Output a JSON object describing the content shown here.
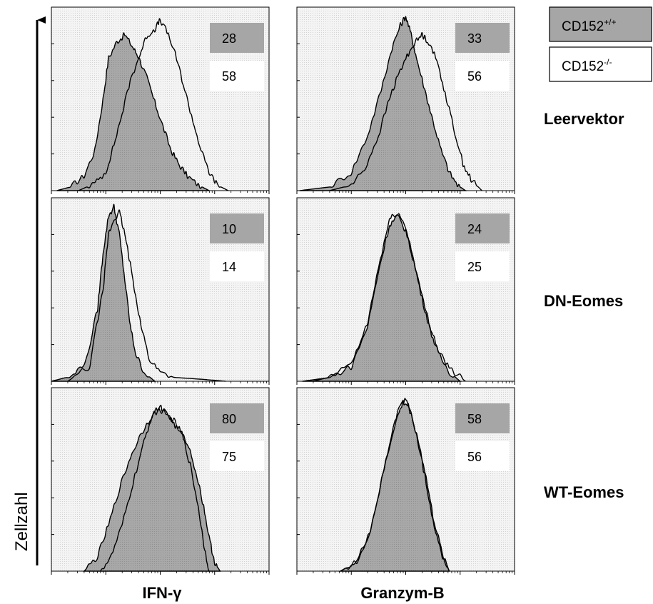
{
  "figure": {
    "y_axis_label": "Zellzahl",
    "column_labels": [
      "IFN-γ",
      "Granzym-B"
    ],
    "row_labels": [
      "Leervektor",
      "DN-Eomes",
      "WT-Eomes"
    ]
  },
  "legend": {
    "position": "top-right",
    "entries": [
      {
        "base": "CD152",
        "sup": "+/+",
        "fill": "#a6a6a6"
      },
      {
        "base": "CD152",
        "sup": "-/-",
        "fill": "#ffffff"
      }
    ]
  },
  "colors": {
    "filled_histogram": "#a6a6a6",
    "open_histogram_line": "#000000",
    "panel_background": "#f3f3f3",
    "gray_box": "#a6a6a6"
  },
  "chart_data": {
    "type": "area",
    "layout": "3x2 grid of overlaid flow-cytometry histograms",
    "x_scale": "log",
    "xlim_decades": [
      0,
      4
    ],
    "ylim": [
      0,
      100
    ],
    "grid": false,
    "panels": [
      {
        "row": "Leervektor",
        "marker": "IFN-γ",
        "values": {
          "CD152+/+": "28",
          "CD152-/-": "58"
        },
        "series": [
          {
            "legend": "CD152+/+",
            "style": "filled",
            "points": [
              [
                0.1,
                0
              ],
              [
                0.35,
                2
              ],
              [
                0.6,
                8
              ],
              [
                0.8,
                22
              ],
              [
                0.95,
                50
              ],
              [
                1.05,
                72
              ],
              [
                1.2,
                81
              ],
              [
                1.35,
                85
              ],
              [
                1.5,
                78
              ],
              [
                1.6,
                73
              ],
              [
                1.75,
                62
              ],
              [
                1.9,
                48
              ],
              [
                2.05,
                35
              ],
              [
                2.2,
                22
              ],
              [
                2.35,
                14
              ],
              [
                2.5,
                8
              ],
              [
                2.7,
                3
              ],
              [
                2.9,
                0
              ]
            ]
          },
          {
            "legend": "CD152-/-",
            "style": "outline",
            "points": [
              [
                0.5,
                0
              ],
              [
                0.8,
                4
              ],
              [
                1.0,
                10
              ],
              [
                1.15,
                25
              ],
              [
                1.3,
                42
              ],
              [
                1.45,
                60
              ],
              [
                1.6,
                72
              ],
              [
                1.75,
                84
              ],
              [
                1.9,
                88
              ],
              [
                2.0,
                93
              ],
              [
                2.15,
                85
              ],
              [
                2.3,
                72
              ],
              [
                2.45,
                55
              ],
              [
                2.6,
                38
              ],
              [
                2.75,
                22
              ],
              [
                2.9,
                10
              ],
              [
                3.05,
                3
              ],
              [
                3.25,
                0
              ]
            ]
          }
        ]
      },
      {
        "row": "Leervektor",
        "marker": "Granzym-B",
        "values": {
          "CD152+/+": "33",
          "CD152-/-": "56"
        },
        "series": [
          {
            "legend": "CD152+/+",
            "style": "filled",
            "points": [
              [
                0.05,
                0
              ],
              [
                0.6,
                2
              ],
              [
                1.0,
                10
              ],
              [
                1.3,
                30
              ],
              [
                1.55,
                55
              ],
              [
                1.75,
                78
              ],
              [
                1.9,
                90
              ],
              [
                2.0,
                95
              ],
              [
                2.1,
                85
              ],
              [
                2.2,
                72
              ],
              [
                2.35,
                55
              ],
              [
                2.5,
                38
              ],
              [
                2.65,
                22
              ],
              [
                2.8,
                10
              ],
              [
                2.95,
                3
              ],
              [
                3.1,
                0
              ]
            ]
          },
          {
            "legend": "CD152-/-",
            "style": "outline",
            "points": [
              [
                0.6,
                0
              ],
              [
                1.0,
                3
              ],
              [
                1.25,
                12
              ],
              [
                1.5,
                30
              ],
              [
                1.7,
                50
              ],
              [
                1.85,
                62
              ],
              [
                2.0,
                72
              ],
              [
                2.15,
                80
              ],
              [
                2.3,
                85
              ],
              [
                2.45,
                80
              ],
              [
                2.6,
                68
              ],
              [
                2.75,
                50
              ],
              [
                2.9,
                32
              ],
              [
                3.05,
                15
              ],
              [
                3.2,
                6
              ],
              [
                3.4,
                0
              ]
            ]
          }
        ]
      },
      {
        "row": "DN-Eomes",
        "marker": "IFN-γ",
        "values": {
          "CD152+/+": "10",
          "CD152-/-": "14"
        },
        "series": [
          {
            "legend": "CD152+/+",
            "style": "filled",
            "points": [
              [
                0.0,
                0
              ],
              [
                0.4,
                3
              ],
              [
                0.65,
                12
              ],
              [
                0.85,
                40
              ],
              [
                0.95,
                70
              ],
              [
                1.05,
                90
              ],
              [
                1.15,
                95
              ],
              [
                1.25,
                80
              ],
              [
                1.35,
                55
              ],
              [
                1.45,
                30
              ],
              [
                1.55,
                15
              ],
              [
                1.7,
                5
              ],
              [
                1.9,
                0
              ]
            ]
          },
          {
            "legend": "CD152-/-",
            "style": "outline",
            "points": [
              [
                0.3,
                0
              ],
              [
                0.7,
                8
              ],
              [
                0.95,
                50
              ],
              [
                1.05,
                80
              ],
              [
                1.15,
                88
              ],
              [
                1.25,
                92
              ],
              [
                1.35,
                80
              ],
              [
                1.5,
                55
              ],
              [
                1.65,
                30
              ],
              [
                1.8,
                12
              ],
              [
                2.0,
                5
              ],
              [
                2.3,
                2
              ],
              [
                2.8,
                1
              ],
              [
                3.2,
                0
              ]
            ]
          }
        ]
      },
      {
        "row": "DN-Eomes",
        "marker": "Granzym-B",
        "values": {
          "CD152+/+": "24",
          "CD152-/-": "25"
        },
        "series": [
          {
            "legend": "CD152+/+",
            "style": "filled",
            "points": [
              [
                0.1,
                0
              ],
              [
                0.6,
                2
              ],
              [
                1.0,
                8
              ],
              [
                1.3,
                30
              ],
              [
                1.5,
                60
              ],
              [
                1.7,
                85
              ],
              [
                1.85,
                90
              ],
              [
                2.0,
                82
              ],
              [
                2.15,
                65
              ],
              [
                2.3,
                45
              ],
              [
                2.45,
                28
              ],
              [
                2.6,
                15
              ],
              [
                2.8,
                5
              ],
              [
                3.0,
                0
              ]
            ]
          },
          {
            "legend": "CD152-/-",
            "style": "outline",
            "points": [
              [
                0.3,
                0
              ],
              [
                0.7,
                3
              ],
              [
                1.05,
                12
              ],
              [
                1.3,
                32
              ],
              [
                1.5,
                62
              ],
              [
                1.7,
                88
              ],
              [
                1.85,
                92
              ],
              [
                2.0,
                84
              ],
              [
                2.15,
                66
              ],
              [
                2.3,
                46
              ],
              [
                2.45,
                30
              ],
              [
                2.6,
                17
              ],
              [
                2.8,
                7
              ],
              [
                3.1,
                0
              ]
            ]
          }
        ]
      },
      {
        "row": "WT-Eomes",
        "marker": "IFN-γ",
        "values": {
          "CD152+/+": "80",
          "CD152-/-": "75"
        },
        "series": [
          {
            "legend": "CD152+/+",
            "style": "filled",
            "points": [
              [
                0.6,
                0
              ],
              [
                0.85,
                8
              ],
              [
                1.05,
                25
              ],
              [
                1.25,
                45
              ],
              [
                1.45,
                62
              ],
              [
                1.65,
                75
              ],
              [
                1.85,
                85
              ],
              [
                2.0,
                88
              ],
              [
                2.15,
                85
              ],
              [
                2.3,
                78
              ],
              [
                2.5,
                70
              ],
              [
                2.65,
                55
              ],
              [
                2.8,
                35
              ],
              [
                2.9,
                18
              ],
              [
                3.0,
                5
              ],
              [
                3.1,
                0
              ]
            ]
          },
          {
            "legend": "CD152-/-",
            "style": "outline",
            "points": [
              [
                0.9,
                0
              ],
              [
                1.1,
                8
              ],
              [
                1.3,
                25
              ],
              [
                1.5,
                48
              ],
              [
                1.7,
                70
              ],
              [
                1.85,
                85
              ],
              [
                2.0,
                90
              ],
              [
                2.1,
                86
              ],
              [
                2.25,
                82
              ],
              [
                2.4,
                75
              ],
              [
                2.55,
                58
              ],
              [
                2.7,
                35
              ],
              [
                2.8,
                15
              ],
              [
                2.9,
                0
              ]
            ]
          }
        ]
      },
      {
        "row": "WT-Eomes",
        "marker": "Granzym-B",
        "values": {
          "CD152+/+": "58",
          "CD152-/-": "56"
        },
        "series": [
          {
            "legend": "CD152+/+",
            "style": "filled",
            "points": [
              [
                0.8,
                0
              ],
              [
                1.1,
                5
              ],
              [
                1.35,
                22
              ],
              [
                1.6,
                55
              ],
              [
                1.8,
                80
              ],
              [
                1.95,
                92
              ],
              [
                2.05,
                90
              ],
              [
                2.2,
                75
              ],
              [
                2.35,
                55
              ],
              [
                2.5,
                30
              ],
              [
                2.65,
                12
              ],
              [
                2.8,
                0
              ]
            ]
          },
          {
            "legend": "CD152-/-",
            "style": "outline",
            "points": [
              [
                0.8,
                0
              ],
              [
                1.1,
                5
              ],
              [
                1.35,
                22
              ],
              [
                1.6,
                55
              ],
              [
                1.8,
                82
              ],
              [
                1.95,
                94
              ],
              [
                2.05,
                91
              ],
              [
                2.2,
                74
              ],
              [
                2.35,
                52
              ],
              [
                2.5,
                28
              ],
              [
                2.65,
                10
              ],
              [
                2.8,
                0
              ]
            ]
          }
        ]
      }
    ]
  }
}
